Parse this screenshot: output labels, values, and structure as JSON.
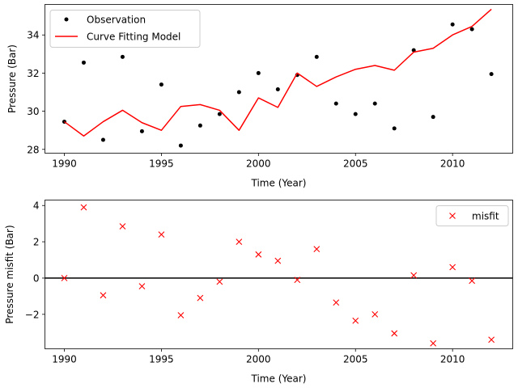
{
  "chart_data": [
    {
      "type": "line",
      "xlabel": "Time (Year)",
      "ylabel": "Pressure (Bar)",
      "xlim": [
        1989,
        2013.1
      ],
      "ylim": [
        27.8,
        35.6
      ],
      "xticks": [
        1990,
        1995,
        2000,
        2005,
        2010
      ],
      "yticks": [
        28,
        30,
        32,
        34
      ],
      "grid": false,
      "legend_position": "top-left",
      "series": [
        {
          "name": "Observation",
          "type": "scatter",
          "marker": "dot",
          "color": "#000000",
          "x": [
            1990,
            1991,
            1992,
            1993,
            1994,
            1995,
            1996,
            1997,
            1998,
            1999,
            2000,
            2001,
            2002,
            2003,
            2004,
            2005,
            2006,
            2007,
            2008,
            2009,
            2010,
            2011,
            2012
          ],
          "y": [
            29.45,
            32.55,
            28.5,
            32.85,
            28.95,
            31.4,
            28.2,
            29.25,
            29.85,
            31.0,
            32.0,
            31.15,
            31.9,
            32.85,
            30.4,
            29.85,
            30.4,
            29.1,
            33.2,
            29.7,
            34.55,
            34.3,
            31.95
          ]
        },
        {
          "name": "Curve Fitting Model",
          "type": "line",
          "color": "#ff0000",
          "x": [
            1990,
            1991,
            1992,
            1993,
            1994,
            1995,
            1996,
            1997,
            1998,
            1999,
            2000,
            2001,
            2002,
            2003,
            2004,
            2005,
            2006,
            2007,
            2008,
            2009,
            2010,
            2011,
            2012
          ],
          "y": [
            29.45,
            28.7,
            29.45,
            30.05,
            29.4,
            29.0,
            30.25,
            30.35,
            30.05,
            29.0,
            30.7,
            30.2,
            32.0,
            31.3,
            31.8,
            32.2,
            32.4,
            32.15,
            33.1,
            33.3,
            34.0,
            34.45,
            35.35
          ]
        }
      ]
    },
    {
      "type": "scatter",
      "xlabel": "Time (Year)",
      "ylabel": "Pressure misfit (Bar)",
      "xlim": [
        1989,
        2013.1
      ],
      "ylim": [
        -3.9,
        4.3
      ],
      "xticks": [
        1990,
        1995,
        2000,
        2005,
        2010
      ],
      "yticks": [
        -2,
        0,
        2,
        4
      ],
      "grid": false,
      "reference_line_y": 0,
      "legend_position": "top-right",
      "series": [
        {
          "name": "misfit",
          "marker": "x",
          "color": "#ff0000",
          "x": [
            1990,
            1991,
            1992,
            1993,
            1994,
            1995,
            1996,
            1997,
            1998,
            1999,
            2000,
            2001,
            2002,
            2003,
            2004,
            2005,
            2006,
            2007,
            2008,
            2009,
            2010,
            2011,
            2012
          ],
          "y": [
            0.0,
            3.9,
            -0.95,
            2.85,
            -0.45,
            2.4,
            -2.05,
            -1.1,
            -0.2,
            2.0,
            1.3,
            0.95,
            -0.1,
            1.6,
            -1.35,
            -2.35,
            -2.0,
            -3.05,
            0.15,
            -3.6,
            0.6,
            -0.15,
            -3.4
          ]
        }
      ]
    }
  ]
}
